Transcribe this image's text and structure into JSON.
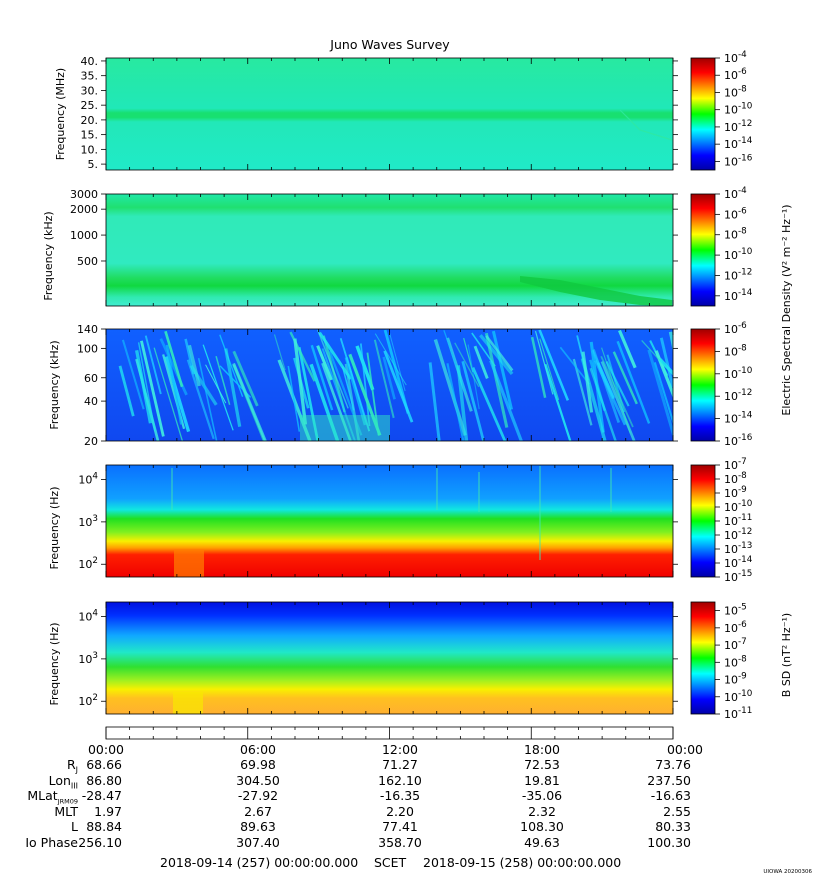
{
  "title": "Juno Waves Survey",
  "footer": {
    "start": "2018-09-14 (257) 00:00:00.000",
    "scet": "SCET",
    "end": "2018-09-15 (258) 00:00:00.000",
    "stamp": "UIOWA 20200306"
  },
  "time_labels": [
    "00:00",
    "06:00",
    "12:00",
    "18:00",
    "00:00"
  ],
  "ephemeris": [
    {
      "label": "R",
      "sub": "J",
      "values": [
        "68.66",
        "69.98",
        "71.27",
        "72.53",
        "73.76"
      ]
    },
    {
      "label": "Lon",
      "sub": "III",
      "values": [
        "86.80",
        "304.50",
        "162.10",
        "19.81",
        "237.50"
      ]
    },
    {
      "label": "MLat",
      "sub": "JRM09",
      "values": [
        "-28.47",
        "-27.92",
        "-16.35",
        "-35.06",
        "-16.63"
      ]
    },
    {
      "label": "MLT",
      "sub": "",
      "values": [
        "1.97",
        "2.67",
        "2.20",
        "2.32",
        "2.55"
      ]
    },
    {
      "label": "L",
      "sub": "",
      "values": [
        "88.84",
        "89.63",
        "77.41",
        "108.30",
        "80.33"
      ]
    },
    {
      "label": "Io Phase",
      "sub": "",
      "values": [
        "256.10",
        "307.40",
        "358.70",
        "49.63",
        "100.30"
      ]
    }
  ],
  "colorbar_titles": {
    "esd": "Electric Spectral Density (V² m⁻² Hz⁻¹)",
    "bsd": "B SD (nT² Hz⁻¹)"
  },
  "chart_data": [
    {
      "type": "heatmap",
      "title": "Juno Waves Survey",
      "ylabel": "Frequency (MHz)",
      "y_scale": "linear",
      "ylim": [
        3,
        41
      ],
      "y_ticks": [
        "40.",
        "35.",
        "30.",
        "25.",
        "20.",
        "15.",
        "10.",
        "5."
      ],
      "colorbar_range": [
        -17,
        -4
      ],
      "colorbar_ticks": [
        "-4",
        "-6",
        "-8",
        "-10",
        "-12",
        "-14",
        "-16"
      ],
      "colorbar_unit": "V² m⁻² Hz⁻¹",
      "description_of_features": "uniform level near 10^-12.5 with a band near 21 MHz"
    },
    {
      "type": "heatmap",
      "ylabel": "Frequency (kHz)",
      "y_scale": "log",
      "ylim": [
        150,
        3000
      ],
      "y_ticks": [
        "3000",
        "2000",
        "1000",
        "500"
      ],
      "colorbar_range": [
        -15,
        -4
      ],
      "colorbar_ticks": [
        "-4",
        "-6",
        "-8",
        "-10",
        "-12",
        "-14"
      ],
      "colorbar_unit": "V² m⁻² Hz⁻¹"
    },
    {
      "type": "heatmap",
      "ylabel": "Frequency (kHz)",
      "y_scale": "log",
      "ylim": [
        20,
        140
      ],
      "y_ticks": [
        "140",
        "100",
        "60",
        "40",
        "20"
      ],
      "colorbar_range": [
        -16,
        -6
      ],
      "colorbar_ticks": [
        "-6",
        "-8",
        "-10",
        "-12",
        "-14",
        "-16"
      ],
      "colorbar_unit": "V² m⁻² Hz⁻¹"
    },
    {
      "type": "heatmap",
      "ylabel": "Frequency (Hz)",
      "y_scale": "log",
      "ylim": [
        50,
        22000
      ],
      "y_ticks": [
        "10^4",
        "10^3",
        "10^2"
      ],
      "colorbar_range": [
        -15,
        -7
      ],
      "colorbar_ticks": [
        "-7",
        "-8",
        "-9",
        "-10",
        "-11",
        "-12",
        "-13",
        "-14",
        "-15"
      ],
      "colorbar_unit": "V² m⁻² Hz⁻¹"
    },
    {
      "type": "heatmap",
      "ylabel": "Frequency (Hz)",
      "y_scale": "log",
      "ylim": [
        50,
        22000
      ],
      "y_ticks": [
        "10^4",
        "10^3",
        "10^2"
      ],
      "colorbar_range": [
        -11,
        -4.5
      ],
      "colorbar_ticks": [
        "-5",
        "-6",
        "-7",
        "-8",
        "-9",
        "-10",
        "-11"
      ],
      "colorbar_unit": "nT² Hz⁻¹"
    }
  ]
}
